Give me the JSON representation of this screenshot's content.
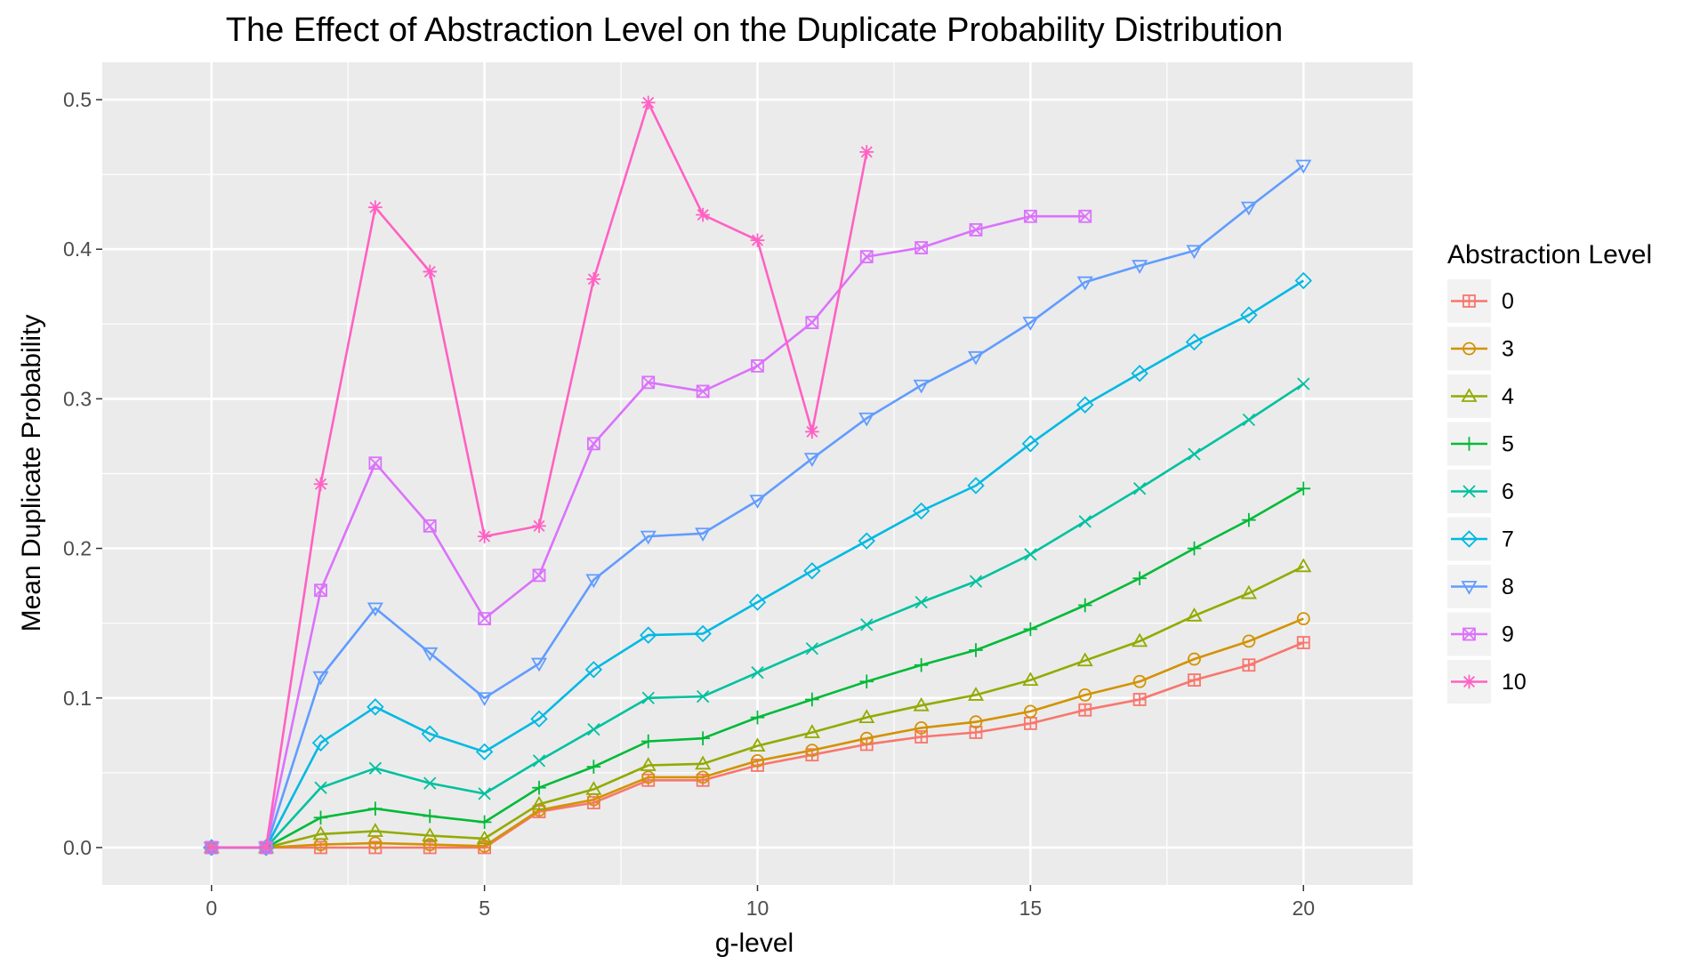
{
  "chart_data": {
    "type": "line",
    "title": "The Effect of Abstraction Level on the Duplicate Probability Distribution",
    "xlabel": "g-level",
    "ylabel": "Mean Duplicate Probability",
    "xlim": [
      -2.0,
      22.0
    ],
    "ylim": [
      -0.025,
      0.525
    ],
    "x_ticks": [
      0,
      5,
      10,
      15,
      20
    ],
    "y_ticks": [
      0.0,
      0.1,
      0.2,
      0.3,
      0.4,
      0.5
    ],
    "x_tick_labels": [
      "0",
      "5",
      "10",
      "15",
      "20"
    ],
    "y_tick_labels": [
      "0.0",
      "0.1",
      "0.2",
      "0.3",
      "0.4",
      "0.5"
    ],
    "grid": true,
    "panel_background": "#ebebeb",
    "legend": {
      "title": "Abstraction Level",
      "position": "right"
    },
    "series": [
      {
        "name": "0",
        "color": "#F8766D",
        "marker": "square-cross",
        "x": [
          0,
          1,
          2,
          3,
          4,
          5,
          6,
          7,
          8,
          9,
          10,
          11,
          12,
          13,
          14,
          15,
          16,
          17,
          18,
          19,
          20
        ],
        "y": [
          0.0,
          0.0,
          0.0,
          0.0,
          0.0,
          0.0,
          0.024,
          0.03,
          0.045,
          0.045,
          0.055,
          0.062,
          0.069,
          0.074,
          0.077,
          0.083,
          0.092,
          0.099,
          0.112,
          0.122,
          0.137
        ]
      },
      {
        "name": "3",
        "color": "#D39200",
        "marker": "circle",
        "x": [
          0,
          1,
          2,
          3,
          4,
          5,
          6,
          7,
          8,
          9,
          10,
          11,
          12,
          13,
          14,
          15,
          16,
          17,
          18,
          19,
          20
        ],
        "y": [
          0.0,
          0.0,
          0.002,
          0.003,
          0.002,
          0.001,
          0.025,
          0.032,
          0.047,
          0.047,
          0.058,
          0.065,
          0.073,
          0.08,
          0.084,
          0.091,
          0.102,
          0.111,
          0.126,
          0.138,
          0.153
        ]
      },
      {
        "name": "4",
        "color": "#93AA00",
        "marker": "triangle",
        "x": [
          0,
          1,
          2,
          3,
          4,
          5,
          6,
          7,
          8,
          9,
          10,
          11,
          12,
          13,
          14,
          15,
          16,
          17,
          18,
          19,
          20
        ],
        "y": [
          0.0,
          0.0,
          0.009,
          0.011,
          0.008,
          0.006,
          0.029,
          0.039,
          0.055,
          0.056,
          0.068,
          0.077,
          0.087,
          0.095,
          0.102,
          0.112,
          0.125,
          0.138,
          0.155,
          0.17,
          0.188
        ]
      },
      {
        "name": "5",
        "color": "#00BA38",
        "marker": "plus",
        "x": [
          0,
          1,
          2,
          3,
          4,
          5,
          6,
          7,
          8,
          9,
          10,
          11,
          12,
          13,
          14,
          15,
          16,
          17,
          18,
          19,
          20
        ],
        "y": [
          0.0,
          0.0,
          0.02,
          0.026,
          0.021,
          0.017,
          0.04,
          0.054,
          0.071,
          0.073,
          0.087,
          0.099,
          0.111,
          0.122,
          0.132,
          0.146,
          0.162,
          0.18,
          0.2,
          0.219,
          0.24
        ]
      },
      {
        "name": "6",
        "color": "#00C19F",
        "marker": "x",
        "x": [
          0,
          1,
          2,
          3,
          4,
          5,
          6,
          7,
          8,
          9,
          10,
          11,
          12,
          13,
          14,
          15,
          16,
          17,
          18,
          19,
          20
        ],
        "y": [
          0.0,
          0.0,
          0.04,
          0.053,
          0.043,
          0.036,
          0.058,
          0.079,
          0.1,
          0.101,
          0.117,
          0.133,
          0.149,
          0.164,
          0.178,
          0.196,
          0.218,
          0.24,
          0.263,
          0.286,
          0.31
        ]
      },
      {
        "name": "7",
        "color": "#00B9E3",
        "marker": "diamond",
        "x": [
          0,
          1,
          2,
          3,
          4,
          5,
          6,
          7,
          8,
          9,
          10,
          11,
          12,
          13,
          14,
          15,
          16,
          17,
          18,
          19,
          20
        ],
        "y": [
          0.0,
          0.0,
          0.07,
          0.094,
          0.076,
          0.064,
          0.086,
          0.119,
          0.142,
          0.143,
          0.164,
          0.185,
          0.205,
          0.225,
          0.242,
          0.27,
          0.296,
          0.317,
          0.338,
          0.356,
          0.379
        ]
      },
      {
        "name": "8",
        "color": "#619CFF",
        "marker": "triangle-down",
        "x": [
          0,
          1,
          2,
          3,
          4,
          5,
          6,
          7,
          8,
          9,
          10,
          11,
          12,
          13,
          14,
          15,
          16,
          17,
          18,
          19,
          20
        ],
        "y": [
          0.0,
          0.0,
          0.114,
          0.16,
          0.13,
          0.1,
          0.123,
          0.179,
          0.208,
          0.21,
          0.232,
          0.26,
          0.287,
          0.309,
          0.328,
          0.351,
          0.378,
          0.389,
          0.399,
          0.428,
          0.456
        ]
      },
      {
        "name": "9",
        "color": "#DB72FB",
        "marker": "square-x",
        "x": [
          0,
          1,
          2,
          3,
          4,
          5,
          6,
          7,
          8,
          9,
          10,
          11,
          12,
          13,
          14,
          15,
          16
        ],
        "y": [
          0.0,
          0.0,
          0.172,
          0.257,
          0.215,
          0.153,
          0.182,
          0.27,
          0.311,
          0.305,
          0.322,
          0.351,
          0.395,
          0.401,
          0.413,
          0.422,
          0.422
        ]
      },
      {
        "name": "10",
        "color": "#FF61C3",
        "marker": "asterisk",
        "x": [
          0,
          1,
          2,
          3,
          4,
          5,
          6,
          7,
          8,
          9,
          10,
          11,
          12
        ],
        "y": [
          0.0,
          0.0,
          0.243,
          0.428,
          0.385,
          0.208,
          0.215,
          0.38,
          0.498,
          0.423,
          0.406,
          0.278,
          0.465
        ]
      }
    ]
  }
}
